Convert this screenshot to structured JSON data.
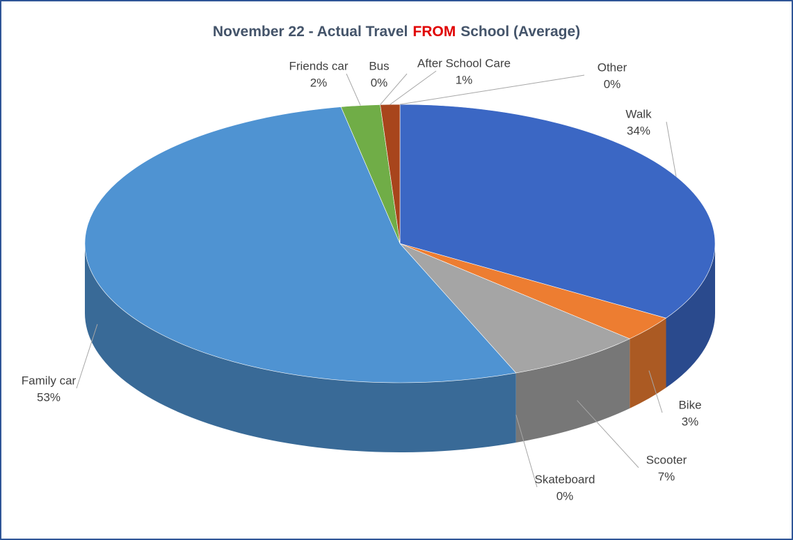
{
  "chart_data": {
    "type": "pie3d",
    "title": [
      "November 22 - Actual Travel",
      "FROM",
      "School (Average)"
    ],
    "title_colors": [
      "#44546a",
      "#e00000",
      "#44546a"
    ],
    "categories": [
      "Walk",
      "Bike",
      "Scooter",
      "Skateboard",
      "Family car",
      "Friends car",
      "Bus",
      "After School Care",
      "Other"
    ],
    "values": [
      34,
      3,
      7,
      0,
      53,
      2,
      0,
      1,
      0
    ],
    "value_labels": [
      "34%",
      "3%",
      "7%",
      "0%",
      "53%",
      "2%",
      "0%",
      "1%",
      "0%"
    ],
    "colors": [
      "#3b67c4",
      "#ed7d31",
      "#a5a5a5",
      "#ffc000",
      "#4f93d2",
      "#70ad47",
      "#264478",
      "#a8451c",
      "#636363"
    ]
  }
}
